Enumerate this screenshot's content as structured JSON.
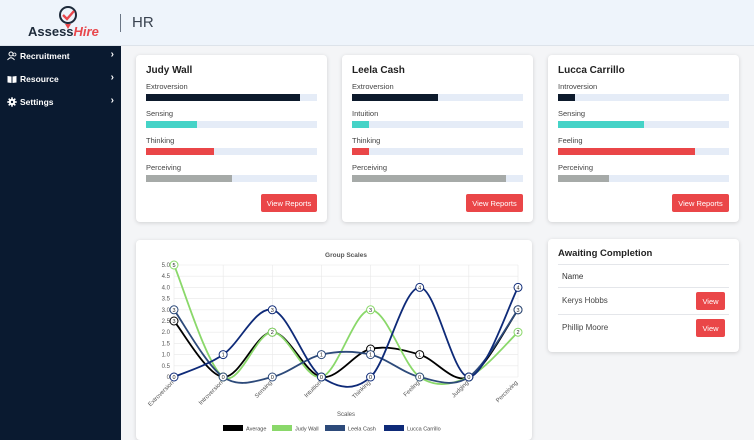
{
  "header": {
    "logo_text_a": "Assess",
    "logo_text_b": "Hire",
    "title": "HR"
  },
  "sidebar": {
    "items": [
      {
        "label": "Recruitment",
        "icon": "users-icon"
      },
      {
        "label": "Resource",
        "icon": "book-icon"
      },
      {
        "label": "Settings",
        "icon": "gear-icon"
      }
    ]
  },
  "cards": [
    {
      "name": "Judy Wall",
      "traits": [
        {
          "label": "Extroversion",
          "value": 0.9,
          "color": "#0d1a2c"
        },
        {
          "label": "Sensing",
          "value": 0.3,
          "color": "#45d3c7"
        },
        {
          "label": "Thinking",
          "value": 0.4,
          "color": "#ea4648"
        },
        {
          "label": "Perceiving",
          "value": 0.5,
          "color": "#a6aaa8"
        }
      ],
      "button": "View Reports"
    },
    {
      "name": "Leela Cash",
      "traits": [
        {
          "label": "Extroversion",
          "value": 0.5,
          "color": "#0d1a2c"
        },
        {
          "label": "Intuition",
          "value": 0.1,
          "color": "#45d3c7"
        },
        {
          "label": "Thinking",
          "value": 0.1,
          "color": "#ea4648"
        },
        {
          "label": "Perceiving",
          "value": 0.9,
          "color": "#a6aaa8"
        }
      ],
      "button": "View Reports"
    },
    {
      "name": "Lucca Carrillo",
      "traits": [
        {
          "label": "Introversion",
          "value": 0.1,
          "color": "#0d1a2c"
        },
        {
          "label": "Sensing",
          "value": 0.5,
          "color": "#45d3c7"
        },
        {
          "label": "Feeling",
          "value": 0.8,
          "color": "#ea4648"
        },
        {
          "label": "Perceiving",
          "value": 0.3,
          "color": "#a6aaa8"
        }
      ],
      "button": "View Reports"
    }
  ],
  "chart_data": {
    "type": "line",
    "title": "Group Scales",
    "xlabel": "Scales",
    "ylabel": "",
    "categories": [
      "Extroversion",
      "Introversion",
      "Sensing",
      "Intuition",
      "Thinking",
      "Feeling",
      "Judging",
      "Perceiving"
    ],
    "ylim": [
      0,
      5
    ],
    "yticks": [
      "0",
      "0.5",
      "1.0",
      "1.5",
      "2.0",
      "2.5",
      "3.0",
      "3.5",
      "4.0",
      "4.5",
      "5.0"
    ],
    "legend_position": "bottom",
    "series": [
      {
        "name": "Average",
        "color": "#000000",
        "values": [
          2.5,
          0,
          2,
          0,
          1.25,
          1,
          0,
          3
        ]
      },
      {
        "name": "Judy Wall",
        "color": "#8ad86a",
        "values": [
          5,
          0,
          2,
          0,
          3,
          0,
          0,
          2
        ]
      },
      {
        "name": "Leela Cash",
        "color": "#2d4a7a",
        "values": [
          3,
          0,
          0,
          1,
          1,
          0,
          0,
          3
        ]
      },
      {
        "name": "Lucca Carrillo",
        "color": "#0e2a78",
        "values": [
          0,
          1,
          3,
          0,
          0,
          4,
          0,
          4
        ]
      }
    ],
    "point_labels": [
      [
        "3",
        "0",
        "2",
        "0",
        "1",
        "1",
        "0",
        "3"
      ],
      [
        "5",
        "0",
        "2",
        "0",
        "3",
        "0",
        "0",
        "2"
      ],
      [
        "3",
        "0",
        "0",
        "1",
        "1",
        "0",
        "0",
        "3"
      ],
      [
        "0",
        "1",
        "3",
        "0",
        "0",
        "4",
        "0",
        "4"
      ]
    ]
  },
  "awaiting": {
    "title": "Awaiting Completion",
    "column": "Name",
    "rows": [
      {
        "name": "Kerys Hobbs",
        "button": "View"
      },
      {
        "name": "Phillip Moore",
        "button": "View"
      }
    ]
  }
}
